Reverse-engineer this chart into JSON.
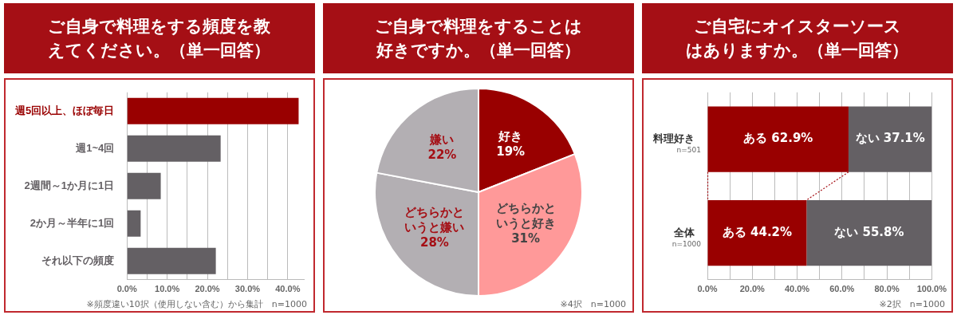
{
  "chart_data": [
    {
      "type": "bar",
      "orientation": "horizontal",
      "title": "ご自身で料理をする頻度を教えてください。（単一回答）",
      "categories": [
        "週5回以上、ほぼ毎日",
        "週1~4回",
        "2週間～1か月に1日",
        "2か月～半年に1回",
        "それ以下の頻度"
      ],
      "values": [
        42.7,
        23.3,
        8.4,
        3.4,
        22.1
      ],
      "colors": [
        "#990000",
        "#646064",
        "#646064",
        "#646064",
        "#646064"
      ],
      "xlim": [
        0,
        44
      ],
      "xticks": [
        {
          "value": 0,
          "label": "0.0%"
        },
        {
          "value": 5,
          "label": null
        },
        {
          "value": 10,
          "label": "10.0%"
        },
        {
          "value": 15,
          "label": null
        },
        {
          "value": 20,
          "label": "20.0%"
        },
        {
          "value": 25,
          "label": null
        },
        {
          "value": 30,
          "label": "30.0%"
        },
        {
          "value": 35,
          "label": null
        },
        {
          "value": 40,
          "label": "40.0%"
        }
      ],
      "grid": "x",
      "legend": false,
      "annotations": [
        "※頻度違い10択（使用しない含む）から集計　n=1000"
      ]
    },
    {
      "type": "pie",
      "title": "ご自身で料理をすることは好きですか。（単一回答）",
      "categories": [
        "好き",
        "どちらかというと好き",
        "どちらかというと嫌い",
        "嫌い"
      ],
      "values": [
        19,
        31,
        28,
        22
      ],
      "value_labels": [
        "19%",
        "31%",
        "28%",
        "22%"
      ],
      "colors": [
        "#990000",
        "#ff9999",
        "#b3afb3",
        "#b3afb3"
      ],
      "legend": false,
      "annotations": [
        "※4択　n=1000"
      ]
    },
    {
      "type": "bar",
      "orientation": "horizontal",
      "stacked": true,
      "title": "ご自宅にオイスターソースはありますか。（単一回答）",
      "categories": [
        "料理好き",
        "全体"
      ],
      "series": [
        {
          "name": "ある",
          "color": "#990000",
          "values": [
            62.9,
            44.2
          ],
          "value_labels": [
            "62.9%",
            "44.2%"
          ]
        },
        {
          "name": "ない",
          "color": "#646064",
          "values": [
            37.1,
            55.8
          ],
          "value_labels": [
            "37.1%",
            "55.8%"
          ]
        }
      ],
      "xlim": [
        0,
        100
      ],
      "xticks": [
        {
          "value": 0,
          "label": "0.0%"
        },
        {
          "value": 10,
          "label": null
        },
        {
          "value": 20,
          "label": "20.0%"
        },
        {
          "value": 30,
          "label": null
        },
        {
          "value": 40,
          "label": "40.0%"
        },
        {
          "value": 50,
          "label": null
        },
        {
          "value": 60,
          "label": "60.0%"
        },
        {
          "value": 70,
          "label": null
        },
        {
          "value": 80,
          "label": "80.0%"
        },
        {
          "value": 90,
          "label": null
        },
        {
          "value": 100,
          "label": "100.0%"
        }
      ],
      "grid": "x",
      "legend": false,
      "annotations": [
        "n=501",
        "n=1000",
        "※2択　n=1000"
      ]
    }
  ]
}
